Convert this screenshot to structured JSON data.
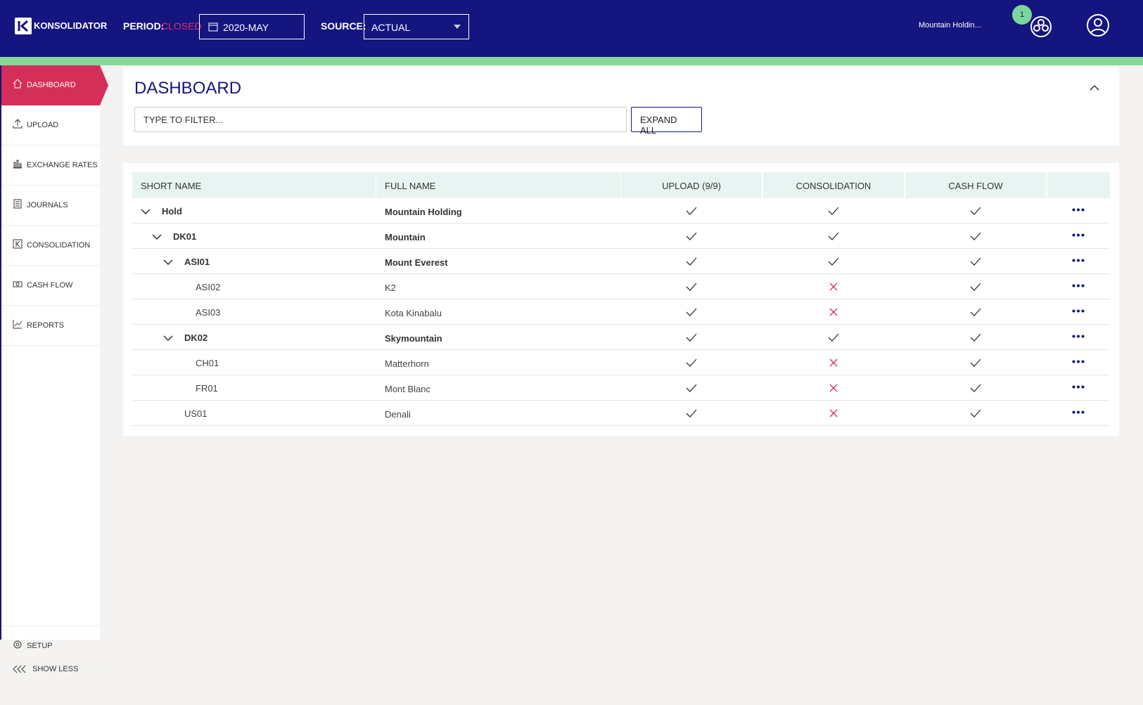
{
  "header": {
    "logo": "KONSOLIDATOR",
    "period_label": "PERIOD:",
    "period_status": "CLOSED",
    "period_value": "2020-MAY",
    "source_label": "SOURCE:",
    "source_value": "ACTUAL",
    "company": "Mountain Holdin...",
    "notification_count": "1"
  },
  "sidebar": {
    "items": [
      "DASHBOARD",
      "UPLOAD",
      "EXCHANGE RATES",
      "JOURNALS",
      "CONSOLIDATION",
      "CASH FLOW",
      "REPORTS"
    ],
    "setup": "SETUP",
    "show_less": "SHOW LESS"
  },
  "dashboard": {
    "title": "DASHBOARD",
    "filter_placeholder": "TYPE TO FILTER...",
    "expand_button": "EXPAND ALL"
  },
  "table": {
    "headers": [
      "SHORT NAME",
      "FULL NAME",
      "UPLOAD (9/9)",
      "CONSOLIDATION",
      "CASH FLOW"
    ],
    "rows": [
      {
        "short_name": "Hold",
        "full_name": "Mountain Holding",
        "level": 0,
        "expandable": true,
        "upload": true,
        "consolidation": true,
        "cash_flow": true
      },
      {
        "short_name": "DK01",
        "full_name": "Mountain",
        "level": 1,
        "expandable": true,
        "upload": true,
        "consolidation": true,
        "cash_flow": true
      },
      {
        "short_name": "ASI01",
        "full_name": "Mount Everest",
        "level": 2,
        "expandable": true,
        "upload": true,
        "consolidation": true,
        "cash_flow": true
      },
      {
        "short_name": "ASI02",
        "full_name": "K2",
        "level": 3,
        "expandable": false,
        "upload": true,
        "consolidation": false,
        "cash_flow": true
      },
      {
        "short_name": "ASI03",
        "full_name": "Kota Kinabalu",
        "level": 3,
        "expandable": false,
        "upload": true,
        "consolidation": false,
        "cash_flow": true
      },
      {
        "short_name": "DK02",
        "full_name": "Skymountain",
        "level": 2,
        "expandable": true,
        "upload": true,
        "consolidation": true,
        "cash_flow": true
      },
      {
        "short_name": "CH01",
        "full_name": "Matterhorn",
        "level": 3,
        "expandable": false,
        "upload": true,
        "consolidation": false,
        "cash_flow": true
      },
      {
        "short_name": "FR01",
        "full_name": "Mont Blanc",
        "level": 3,
        "expandable": false,
        "upload": true,
        "consolidation": false,
        "cash_flow": true
      },
      {
        "short_name": "US01",
        "full_name": "Denali",
        "level": 2,
        "expandable": false,
        "upload": true,
        "consolidation": false,
        "cash_flow": true
      }
    ]
  }
}
